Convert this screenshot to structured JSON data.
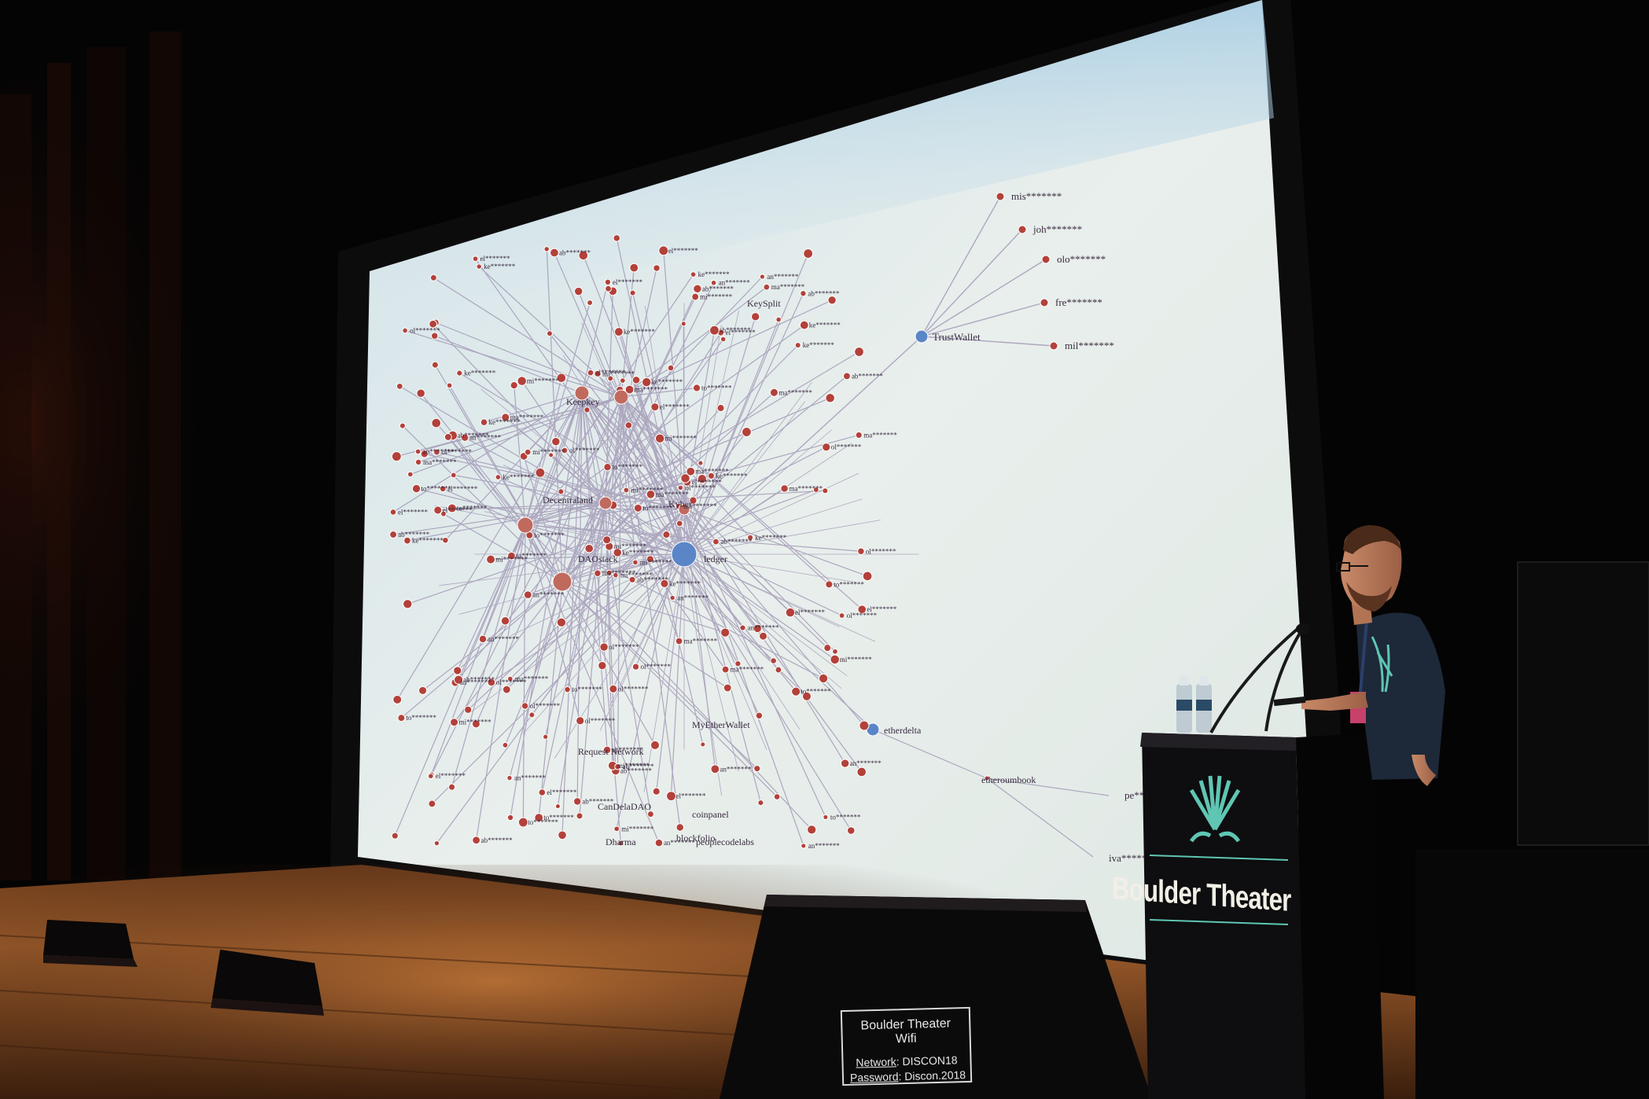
{
  "podium": {
    "brand": "Boulder Theater"
  },
  "wifi_card": {
    "title": "Boulder Theater Wifi",
    "network_label": "Network",
    "network_value": "DISCON18",
    "password_label": "Password",
    "password_value": "Discon.2018"
  },
  "slide": {
    "hub_labels": [
      "TrustWallet",
      "etherdelta",
      "etheroumbook",
      "MyEtherWallet",
      "KeySplit",
      "Keepkey",
      "DAOstack",
      "Request Network",
      "CanDelaDAO",
      "Dharma",
      "blockfolio",
      "peoplecodelabs",
      "coinpanel",
      "Decentraland",
      "Kyber",
      "ledger"
    ],
    "trust_children": [
      "mis*******",
      "joh*******",
      "olo*******",
      "fre*******",
      "mil*******"
    ],
    "delta_children": [
      "pe*******",
      "iva*******"
    ]
  },
  "colors": {
    "screen_light": "#e6eeec",
    "screen_sky": "#b9d6e6",
    "edge": "#9a8fb0",
    "node": "#b3413a",
    "label": "#3a2c40",
    "accent": "#5fc6b3"
  }
}
